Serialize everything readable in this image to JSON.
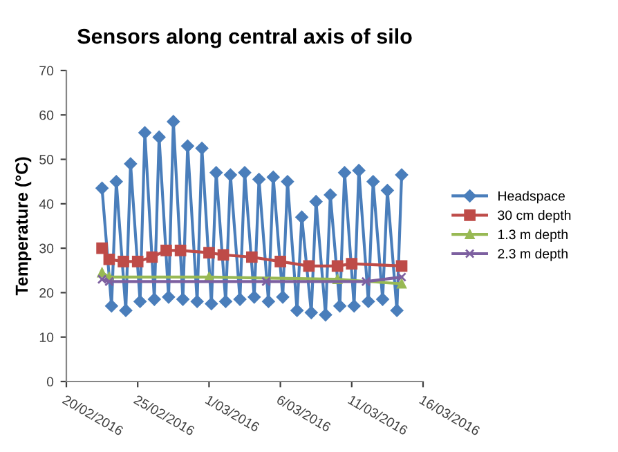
{
  "chart_data": {
    "type": "line",
    "title": "Sensors along central axis of silo",
    "ylabel": "Temperature (°C)",
    "xlim": [
      "2016-02-20",
      "2016-03-16"
    ],
    "xticks": [
      {
        "value": "2016-02-20",
        "label": "20/02/2016"
      },
      {
        "value": "2016-02-25",
        "label": "25/02/2016"
      },
      {
        "value": "2016-03-01",
        "label": "1/03/2016"
      },
      {
        "value": "2016-03-06",
        "label": "6/03/2016"
      },
      {
        "value": "2016-03-11",
        "label": "11/03/2016"
      },
      {
        "value": "2016-03-16",
        "label": "16/03/2016"
      }
    ],
    "ylim": [
      0,
      70
    ],
    "yticks": [
      0,
      10,
      20,
      30,
      40,
      50,
      60,
      70
    ],
    "grid": false,
    "legend": "right",
    "series": [
      {
        "name": "Headspace",
        "color": "#4a7ebb",
        "marker": "diamond",
        "x": [
          "2016-02-22T12:00",
          "2016-02-23T04:00",
          "2016-02-23T12:00",
          "2016-02-24T04:00",
          "2016-02-24T12:00",
          "2016-02-25T04:00",
          "2016-02-25T12:00",
          "2016-02-26T04:00",
          "2016-02-26T12:00",
          "2016-02-27T04:00",
          "2016-02-27T12:00",
          "2016-02-28T04:00",
          "2016-02-28T12:00",
          "2016-02-29T04:00",
          "2016-02-29T12:00",
          "2016-03-01T04:00",
          "2016-03-01T12:00",
          "2016-03-02T04:00",
          "2016-03-02T12:00",
          "2016-03-03T04:00",
          "2016-03-03T12:00",
          "2016-03-04T04:00",
          "2016-03-04T12:00",
          "2016-03-05T04:00",
          "2016-03-05T12:00",
          "2016-03-06T04:00",
          "2016-03-06T12:00",
          "2016-03-07T04:00",
          "2016-03-07T12:00",
          "2016-03-08T04:00",
          "2016-03-08T12:00",
          "2016-03-09T04:00",
          "2016-03-09T12:00",
          "2016-03-10T04:00",
          "2016-03-10T12:00",
          "2016-03-11T04:00",
          "2016-03-11T12:00",
          "2016-03-12T04:00",
          "2016-03-12T12:00",
          "2016-03-13T04:00",
          "2016-03-13T12:00",
          "2016-03-14T04:00",
          "2016-03-14T12:00"
        ],
        "values": [
          43.5,
          17,
          45,
          16,
          49,
          18,
          56,
          18.5,
          55,
          19,
          58.5,
          18.5,
          53,
          18,
          52.5,
          17.5,
          47,
          18,
          46.5,
          18.5,
          47,
          19,
          45.5,
          18,
          46,
          19,
          45,
          16,
          37,
          15.5,
          40.5,
          15,
          42,
          17,
          47,
          17,
          47.5,
          18,
          45,
          18.5,
          43,
          16,
          46.5
        ]
      },
      {
        "name": "30 cm depth",
        "color": "#be4b48",
        "marker": "square",
        "x": [
          "2016-02-22T12:00",
          "2016-02-23",
          "2016-02-24",
          "2016-02-25",
          "2016-02-26",
          "2016-02-27",
          "2016-02-28",
          "2016-03-01",
          "2016-03-02",
          "2016-03-04",
          "2016-03-06",
          "2016-03-08",
          "2016-03-10",
          "2016-03-11",
          "2016-03-14T12:00"
        ],
        "values": [
          30,
          27.5,
          27,
          27,
          28,
          29.5,
          29.5,
          29,
          28.5,
          28,
          27,
          26,
          26,
          26.5,
          26
        ]
      },
      {
        "name": "1.3 m depth",
        "color": "#98b954",
        "marker": "triangle",
        "x": [
          "2016-02-22T12:00",
          "2016-02-23",
          "2016-03-01",
          "2016-03-10",
          "2016-03-14T12:00"
        ],
        "values": [
          24.5,
          23.5,
          23.5,
          23,
          22
        ]
      },
      {
        "name": "2.3 m depth",
        "color": "#7d60a0",
        "marker": "cross",
        "x": [
          "2016-02-22T12:00",
          "2016-02-23",
          "2016-03-05",
          "2016-03-12",
          "2016-03-14T12:00"
        ],
        "values": [
          23,
          22.5,
          22.5,
          22.5,
          23.5
        ]
      }
    ]
  }
}
